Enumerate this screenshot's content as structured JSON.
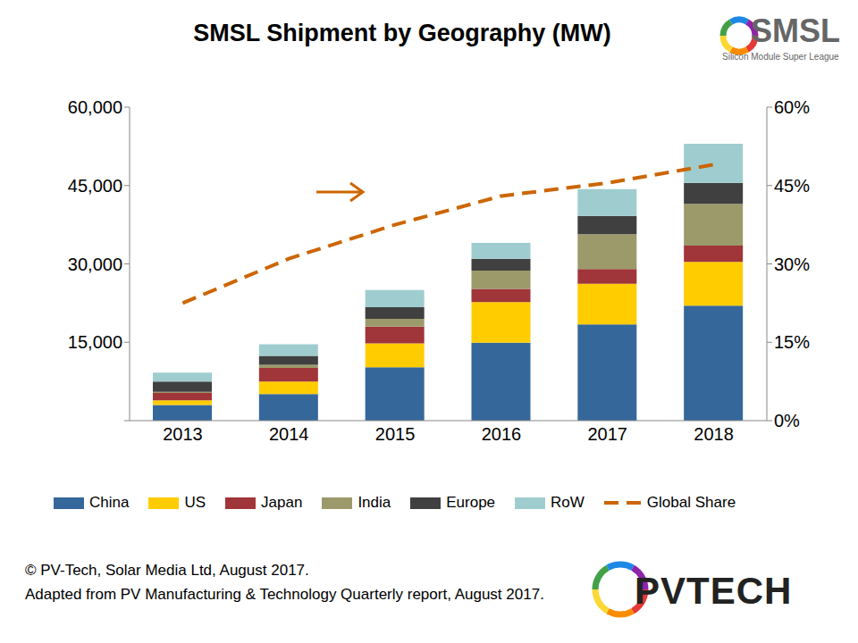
{
  "chart_data": {
    "type": "bar",
    "title": "SMSL Shipment by Geography (MW)",
    "stacked": true,
    "grid": false,
    "legend": "bottom",
    "categories": [
      "2013",
      "2014",
      "2015",
      "2016",
      "2017",
      "2018"
    ],
    "series": [
      {
        "name": "China",
        "type": "bar",
        "color": "#35679a",
        "values": [
          3000,
          5100,
          10200,
          14900,
          18400,
          22000
        ]
      },
      {
        "name": "US",
        "type": "bar",
        "color": "#ffcc00",
        "values": [
          900,
          2400,
          4600,
          7800,
          7800,
          8400
        ]
      },
      {
        "name": "Japan",
        "type": "bar",
        "color": "#a0353a",
        "values": [
          1400,
          2600,
          3200,
          2500,
          2800,
          3100
        ]
      },
      {
        "name": "India",
        "type": "bar",
        "color": "#9c9a6a",
        "values": [
          200,
          600,
          1500,
          3500,
          6700,
          8000
        ]
      },
      {
        "name": "Europe",
        "type": "bar",
        "color": "#404040",
        "values": [
          2000,
          1700,
          2200,
          2300,
          3500,
          4000
        ]
      },
      {
        "name": "RoW",
        "type": "bar",
        "color": "#9fcdcf",
        "values": [
          1700,
          2200,
          3300,
          3000,
          5100,
          7500
        ]
      },
      {
        "name": "Global Share",
        "type": "line",
        "axis": "y2",
        "line_style": "dashed",
        "color": "#cc6600",
        "values": [
          22.5,
          31,
          37.5,
          43,
          45.5,
          49
        ]
      }
    ],
    "ylim": [
      0,
      60000
    ],
    "yticks": [
      0,
      {
        "value": 15000,
        "label": "15,000"
      },
      {
        "value": 30000,
        "label": "30,000"
      },
      {
        "value": 45000,
        "label": "45,000"
      },
      {
        "value": 60000,
        "label": "60,000"
      }
    ],
    "y2lim": [
      0,
      60
    ],
    "y2ticks": [
      {
        "value": 0,
        "label": "0%"
      },
      {
        "value": 15,
        "label": "15%"
      },
      {
        "value": 30,
        "label": "30%"
      },
      {
        "value": 45,
        "label": "45%"
      },
      {
        "value": 60,
        "label": "60%"
      }
    ],
    "source": [
      "© PV-Tech, Solar Media Ltd, August 2017.",
      "Adapted from PV Manufacturing & Technology Quarterly report, August 2017."
    ],
    "logos": {
      "top": {
        "text": "SMSL",
        "subtitle": "Silicon Module Super League"
      },
      "bottom": {
        "text": "PVTECH"
      }
    }
  }
}
